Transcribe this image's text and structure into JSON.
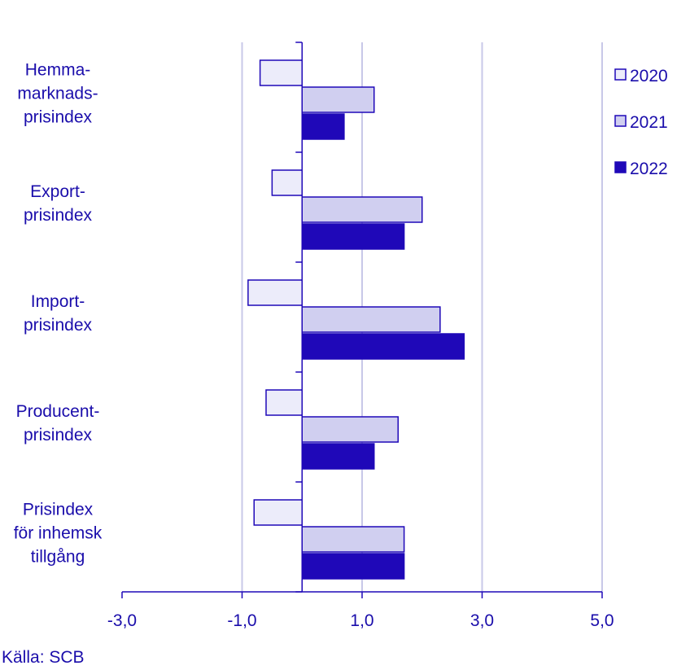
{
  "chart_data": {
    "type": "bar",
    "orientation": "horizontal",
    "categories": [
      [
        "Hemma-",
        "marknads-",
        "prisindex"
      ],
      [
        "Export-",
        "prisindex"
      ],
      [
        "Import-",
        "prisindex"
      ],
      [
        "Producent-",
        "prisindex"
      ],
      [
        "Prisindex",
        "för inhemsk",
        "tillgång"
      ]
    ],
    "series": [
      {
        "name": "2020",
        "values": [
          -0.7,
          -0.5,
          -0.9,
          -0.6,
          -0.8
        ],
        "color": "#ececfa"
      },
      {
        "name": "2021",
        "values": [
          1.2,
          2.0,
          2.3,
          1.6,
          1.7
        ],
        "color": "#d0cff0"
      },
      {
        "name": "2022",
        "values": [
          0.7,
          1.7,
          2.7,
          1.2,
          1.7
        ],
        "color": "#1f08b8"
      }
    ],
    "xlim": [
      -3.0,
      5.0
    ],
    "xticks": [
      -3.0,
      -1.0,
      1.0,
      3.0,
      5.0
    ],
    "xtick_labels": [
      "-3,0",
      "-1,0",
      "1,0",
      "3,0",
      "5,0"
    ],
    "grid": true,
    "legend": "top-right",
    "bar_outline_color": "#1f08b8",
    "grid_color": "#c8c8e8",
    "text_color": "#1a0dab"
  },
  "source": "Källa: SCB"
}
